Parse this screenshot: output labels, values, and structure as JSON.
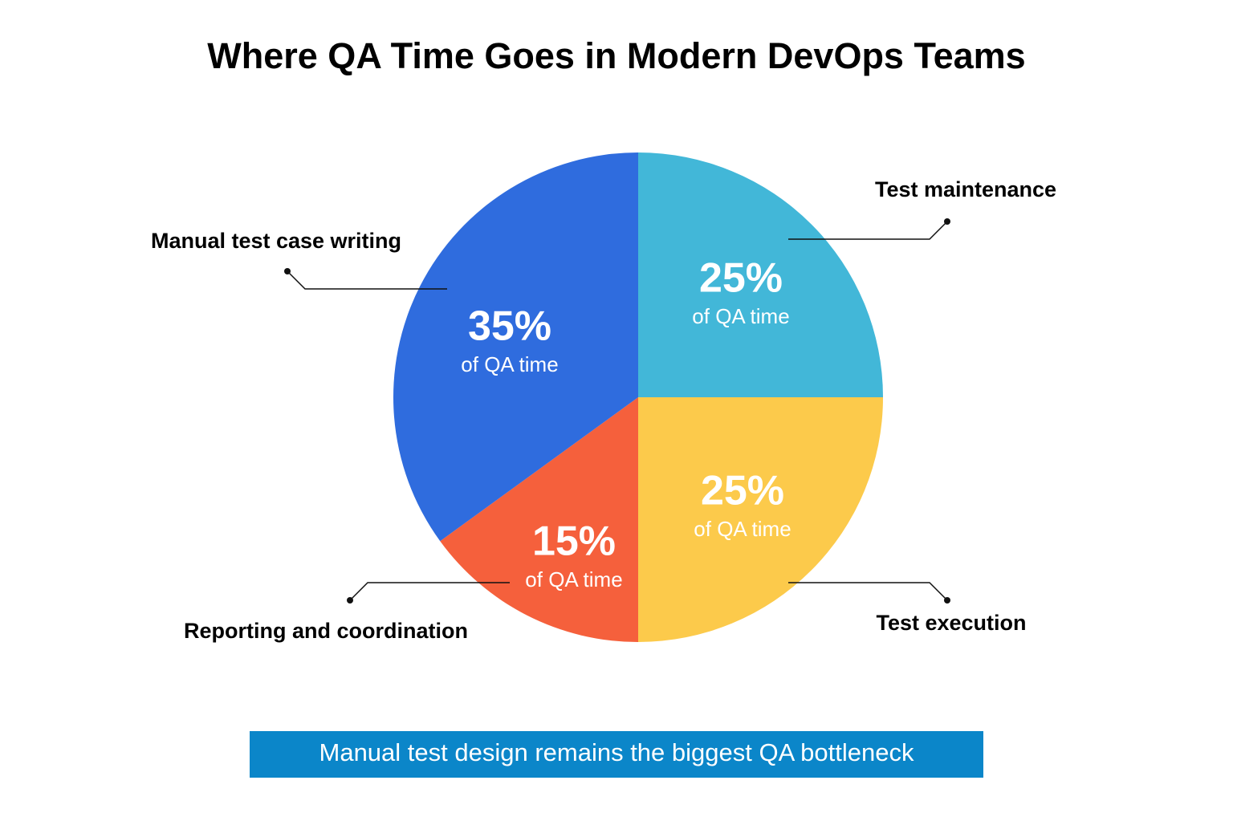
{
  "chart_data": {
    "type": "pie",
    "title": "Where QA Time Goes in Modern DevOps Teams",
    "categories": [
      "Test maintenance",
      "Test execution",
      "Reporting and coordination",
      "Manual test case writing"
    ],
    "values": [
      25,
      25,
      15,
      35
    ],
    "value_labels": [
      "25%",
      "25%",
      "15%",
      "35%"
    ],
    "value_caption": "of QA time",
    "colors": [
      "#42b7d8",
      "#fcca4b",
      "#f5603c",
      "#2f6cde"
    ],
    "note": "Manual test design remains the biggest QA bottleneck"
  }
}
